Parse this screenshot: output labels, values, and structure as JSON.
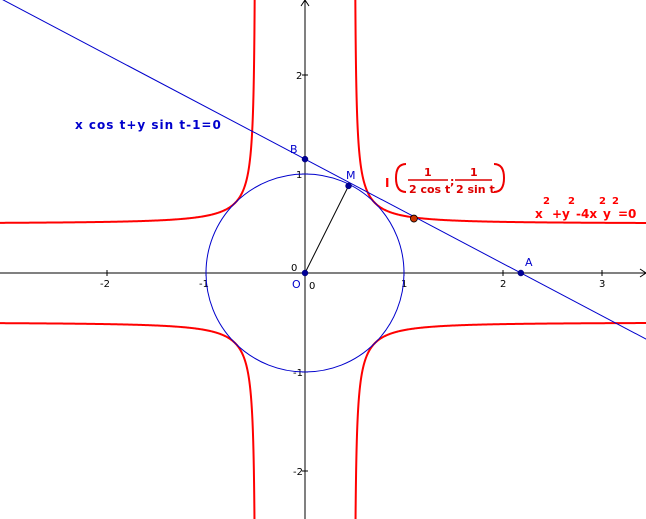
{
  "axes": {
    "x_ticks": [
      "-2",
      "-1",
      "0",
      "1",
      "2",
      "3"
    ],
    "y_ticks": [
      "2",
      "1",
      "-1",
      "-2"
    ],
    "origin_label": "0"
  },
  "points": {
    "B": {
      "label": "B",
      "x": 0,
      "y": 1.15
    },
    "M": {
      "label": "M",
      "x": 0.44,
      "y": 0.88
    },
    "A": {
      "label": "A",
      "x": 2.18,
      "y": 0
    },
    "O": {
      "label": "O",
      "x": 0,
      "y": 0
    },
    "I": {
      "label": "I",
      "x": 1.1,
      "y": 0.55
    }
  },
  "equations": {
    "tangent_line": "x cos t+y sin t-1=0",
    "red_curve": {
      "base": [
        "x",
        "+y",
        "-4x",
        "y",
        "=0"
      ],
      "exponents": [
        "2",
        "2",
        "2",
        "2"
      ]
    },
    "point_I": {
      "name": "I",
      "num1": "1",
      "den1": "2 cos t",
      "sep": ";",
      "num2": "1",
      "den2": "2 sin t"
    }
  },
  "colors": {
    "line": "#0000cc",
    "circle": "#0000cc",
    "curve": "#ff0000",
    "axis": "#000000",
    "point_blue": "#000099",
    "point_red": "#cc3300"
  }
}
